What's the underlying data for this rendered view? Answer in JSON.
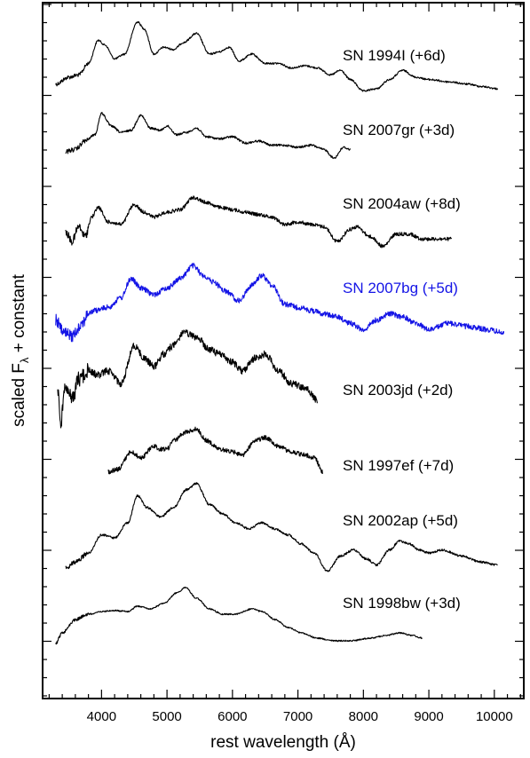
{
  "chart_data": {
    "type": "line",
    "title": "",
    "xlabel": "rest wavelength (Å)",
    "ylabel": "scaled F",
    "ylabel_sub": "λ",
    "ylabel_suffix": " + constant",
    "xlim": [
      3100,
      10450
    ],
    "x_ticks": [
      4000,
      5000,
      6000,
      7000,
      8000,
      9000,
      10000
    ],
    "x_tick_labels": [
      "4000",
      "5000",
      "6000",
      "7000",
      "8000",
      "9000",
      "10000"
    ],
    "grid": false,
    "legend": "none",
    "series": [
      {
        "name": "SN 1994I (+6d)",
        "color": "#000000",
        "points": [
          [
            3300,
            0.1
          ],
          [
            3500,
            0.25
          ],
          [
            3650,
            0.3
          ],
          [
            3800,
            0.55
          ],
          [
            3950,
            1.05
          ],
          [
            4050,
            0.95
          ],
          [
            4200,
            0.65
          ],
          [
            4350,
            0.75
          ],
          [
            4550,
            1.45
          ],
          [
            4650,
            1.3
          ],
          [
            4800,
            0.75
          ],
          [
            4950,
            0.9
          ],
          [
            5100,
            0.85
          ],
          [
            5250,
            1.0
          ],
          [
            5450,
            1.2
          ],
          [
            5650,
            0.75
          ],
          [
            5800,
            0.8
          ],
          [
            5950,
            0.9
          ],
          [
            6100,
            0.6
          ],
          [
            6300,
            0.75
          ],
          [
            6500,
            0.55
          ],
          [
            6700,
            0.55
          ],
          [
            6900,
            0.45
          ],
          [
            7100,
            0.5
          ],
          [
            7300,
            0.45
          ],
          [
            7500,
            0.3
          ],
          [
            7650,
            0.4
          ],
          [
            7800,
            0.2
          ],
          [
            8000,
            -0.05
          ],
          [
            8200,
            0.0
          ],
          [
            8400,
            0.2
          ],
          [
            8600,
            0.4
          ],
          [
            8800,
            0.25
          ],
          [
            9000,
            0.2
          ],
          [
            9300,
            0.15
          ],
          [
            9600,
            0.1
          ],
          [
            9800,
            0.05
          ],
          [
            10050,
            0.0
          ]
        ]
      },
      {
        "name": "SN 2007gr (+3d)",
        "color": "#000000",
        "points": [
          [
            3450,
            0.15
          ],
          [
            3600,
            0.2
          ],
          [
            3750,
            0.4
          ],
          [
            3900,
            0.55
          ],
          [
            4000,
            1.05
          ],
          [
            4150,
            0.75
          ],
          [
            4300,
            0.6
          ],
          [
            4450,
            0.65
          ],
          [
            4600,
            1.0
          ],
          [
            4750,
            0.7
          ],
          [
            4900,
            0.65
          ],
          [
            5000,
            0.75
          ],
          [
            5150,
            0.55
          ],
          [
            5300,
            0.6
          ],
          [
            5450,
            0.7
          ],
          [
            5600,
            0.5
          ],
          [
            5800,
            0.45
          ],
          [
            6000,
            0.5
          ],
          [
            6200,
            0.35
          ],
          [
            6400,
            0.4
          ],
          [
            6600,
            0.3
          ],
          [
            6800,
            0.3
          ],
          [
            7000,
            0.25
          ],
          [
            7200,
            0.3
          ],
          [
            7400,
            0.2
          ],
          [
            7550,
            0.0
          ],
          [
            7700,
            0.25
          ],
          [
            7800,
            0.2
          ]
        ]
      },
      {
        "name": "SN 2004aw (+8d)",
        "color": "#000000",
        "points": [
          [
            3450,
            0.2
          ],
          [
            3550,
            0.0
          ],
          [
            3650,
            0.3
          ],
          [
            3750,
            0.1
          ],
          [
            3850,
            0.5
          ],
          [
            3950,
            0.7
          ],
          [
            4100,
            0.4
          ],
          [
            4300,
            0.35
          ],
          [
            4500,
            0.75
          ],
          [
            4650,
            0.6
          ],
          [
            4800,
            0.5
          ],
          [
            5000,
            0.6
          ],
          [
            5200,
            0.65
          ],
          [
            5400,
            0.9
          ],
          [
            5600,
            0.8
          ],
          [
            5800,
            0.7
          ],
          [
            6000,
            0.65
          ],
          [
            6200,
            0.6
          ],
          [
            6400,
            0.55
          ],
          [
            6600,
            0.5
          ],
          [
            6800,
            0.35
          ],
          [
            7000,
            0.4
          ],
          [
            7200,
            0.35
          ],
          [
            7400,
            0.3
          ],
          [
            7600,
            0.0
          ],
          [
            7800,
            0.25
          ],
          [
            7900,
            0.3
          ],
          [
            8100,
            0.1
          ],
          [
            8300,
            -0.1
          ],
          [
            8500,
            0.15
          ],
          [
            8700,
            0.15
          ],
          [
            8900,
            0.05
          ],
          [
            9100,
            0.05
          ],
          [
            9350,
            0.05
          ]
        ]
      },
      {
        "name": "SN 2007bg (+5d)",
        "color": "#1414e6",
        "points": [
          [
            3300,
            0.2
          ],
          [
            3420,
            0.0
          ],
          [
            3550,
            -0.05
          ],
          [
            3700,
            0.15
          ],
          [
            3800,
            0.3
          ],
          [
            3900,
            0.35
          ],
          [
            4100,
            0.4
          ],
          [
            4300,
            0.55
          ],
          [
            4450,
            0.85
          ],
          [
            4600,
            0.7
          ],
          [
            4800,
            0.6
          ],
          [
            5000,
            0.7
          ],
          [
            5200,
            0.85
          ],
          [
            5400,
            1.05
          ],
          [
            5550,
            0.9
          ],
          [
            5700,
            0.8
          ],
          [
            5900,
            0.65
          ],
          [
            6100,
            0.5
          ],
          [
            6300,
            0.75
          ],
          [
            6450,
            0.9
          ],
          [
            6600,
            0.75
          ],
          [
            6800,
            0.45
          ],
          [
            7000,
            0.4
          ],
          [
            7200,
            0.35
          ],
          [
            7400,
            0.3
          ],
          [
            7600,
            0.25
          ],
          [
            7800,
            0.15
          ],
          [
            8000,
            0.05
          ],
          [
            8200,
            0.2
          ],
          [
            8400,
            0.3
          ],
          [
            8600,
            0.25
          ],
          [
            8800,
            0.15
          ],
          [
            9000,
            0.05
          ],
          [
            9300,
            0.15
          ],
          [
            9600,
            0.1
          ],
          [
            9900,
            0.05
          ],
          [
            10150,
            0.0
          ]
        ]
      },
      {
        "name": "SN 2003jd (+2d)",
        "color": "#000000",
        "points": [
          [
            3330,
            0.3
          ],
          [
            3380,
            -0.05
          ],
          [
            3450,
            0.4
          ],
          [
            3550,
            0.2
          ],
          [
            3650,
            0.45
          ],
          [
            3800,
            0.55
          ],
          [
            3950,
            0.5
          ],
          [
            4100,
            0.55
          ],
          [
            4300,
            0.4
          ],
          [
            4500,
            0.85
          ],
          [
            4650,
            0.7
          ],
          [
            4800,
            0.6
          ],
          [
            4950,
            0.75
          ],
          [
            5100,
            0.85
          ],
          [
            5250,
            1.0
          ],
          [
            5450,
            0.95
          ],
          [
            5650,
            0.8
          ],
          [
            5800,
            0.75
          ],
          [
            6000,
            0.65
          ],
          [
            6150,
            0.55
          ],
          [
            6350,
            0.7
          ],
          [
            6500,
            0.75
          ],
          [
            6700,
            0.55
          ],
          [
            6900,
            0.4
          ],
          [
            7100,
            0.35
          ],
          [
            7300,
            0.2
          ]
        ]
      },
      {
        "name": "SN 1997ef (+7d)",
        "color": "#000000",
        "points": [
          [
            4100,
            0.2
          ],
          [
            4250,
            0.25
          ],
          [
            4450,
            0.55
          ],
          [
            4600,
            0.45
          ],
          [
            4800,
            0.65
          ],
          [
            4900,
            0.6
          ],
          [
            5000,
            0.6
          ],
          [
            5100,
            0.75
          ],
          [
            5300,
            0.9
          ],
          [
            5450,
            0.95
          ],
          [
            5600,
            0.75
          ],
          [
            5800,
            0.6
          ],
          [
            6000,
            0.55
          ],
          [
            6150,
            0.5
          ],
          [
            6350,
            0.75
          ],
          [
            6500,
            0.8
          ],
          [
            6700,
            0.65
          ],
          [
            6900,
            0.55
          ],
          [
            7100,
            0.5
          ],
          [
            7250,
            0.45
          ],
          [
            7380,
            0.2
          ]
        ]
      },
      {
        "name": "SN 2002ap (+5d)",
        "color": "#000000",
        "points": [
          [
            3450,
            0.0
          ],
          [
            3600,
            0.1
          ],
          [
            3800,
            0.25
          ],
          [
            4000,
            0.55
          ],
          [
            4200,
            0.5
          ],
          [
            4400,
            0.75
          ],
          [
            4550,
            1.2
          ],
          [
            4700,
            1.0
          ],
          [
            4900,
            0.85
          ],
          [
            5100,
            1.0
          ],
          [
            5300,
            1.3
          ],
          [
            5450,
            1.4
          ],
          [
            5650,
            1.05
          ],
          [
            5850,
            0.9
          ],
          [
            6050,
            0.75
          ],
          [
            6250,
            0.65
          ],
          [
            6450,
            0.75
          ],
          [
            6650,
            0.65
          ],
          [
            6850,
            0.55
          ],
          [
            7050,
            0.4
          ],
          [
            7250,
            0.25
          ],
          [
            7450,
            -0.05
          ],
          [
            7650,
            0.2
          ],
          [
            7850,
            0.3
          ],
          [
            8050,
            0.15
          ],
          [
            8200,
            0.05
          ],
          [
            8400,
            0.3
          ],
          [
            8550,
            0.45
          ],
          [
            8700,
            0.4
          ],
          [
            8850,
            0.3
          ],
          [
            9000,
            0.25
          ],
          [
            9200,
            0.3
          ],
          [
            9500,
            0.2
          ],
          [
            9800,
            0.1
          ],
          [
            10050,
            0.05
          ]
        ]
      },
      {
        "name": "SN 1998bw (+3d)",
        "color": "#000000",
        "points": [
          [
            3300,
            0.0
          ],
          [
            3400,
            0.2
          ],
          [
            3600,
            0.45
          ],
          [
            3800,
            0.55
          ],
          [
            4000,
            0.6
          ],
          [
            4200,
            0.62
          ],
          [
            4400,
            0.6
          ],
          [
            4550,
            0.7
          ],
          [
            4750,
            0.65
          ],
          [
            4950,
            0.75
          ],
          [
            5150,
            0.95
          ],
          [
            5280,
            1.05
          ],
          [
            5450,
            0.85
          ],
          [
            5650,
            0.65
          ],
          [
            5850,
            0.55
          ],
          [
            6050,
            0.55
          ],
          [
            6300,
            0.65
          ],
          [
            6450,
            0.6
          ],
          [
            6650,
            0.45
          ],
          [
            6850,
            0.3
          ],
          [
            7050,
            0.2
          ],
          [
            7300,
            0.1
          ],
          [
            7550,
            0.05
          ],
          [
            7800,
            0.05
          ],
          [
            8100,
            0.1
          ],
          [
            8350,
            0.15
          ],
          [
            8550,
            0.2
          ],
          [
            8750,
            0.15
          ],
          [
            8900,
            0.1
          ]
        ]
      }
    ]
  }
}
